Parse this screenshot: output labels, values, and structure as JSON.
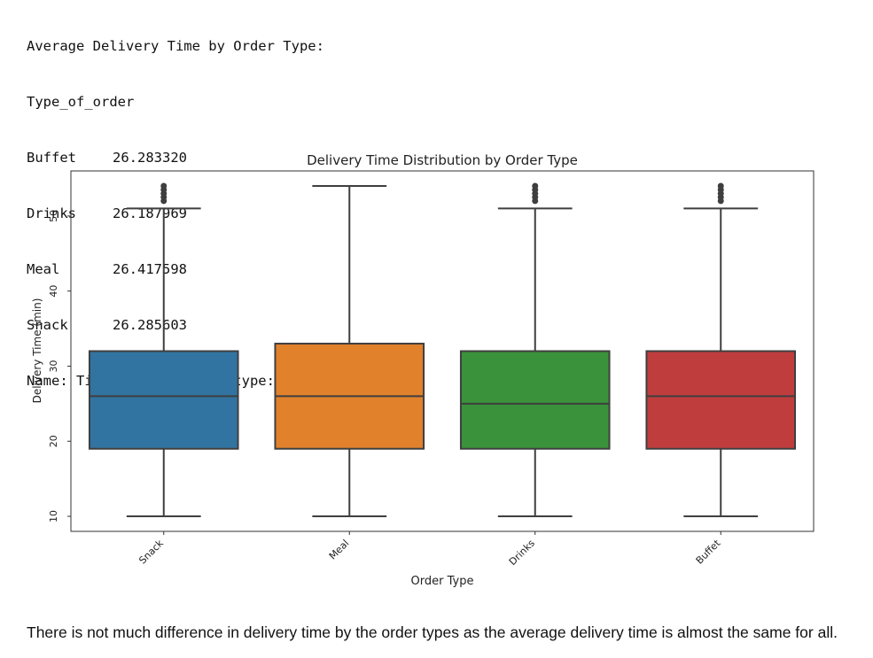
{
  "output": {
    "heading": "Average Delivery Time by Order Type:",
    "index_name": "Type_of_order",
    "rows": [
      {
        "label": "Buffet",
        "value": "26.283320"
      },
      {
        "label": "Drinks",
        "value": "26.187969"
      },
      {
        "label": "Meal",
        "value": "26.417598"
      },
      {
        "label": "Snack",
        "value": "26.285603"
      }
    ],
    "footer": "Name: Time_taken (min), dtype: float64"
  },
  "chart_data": {
    "type": "box",
    "title": "Delivery Time Distribution by Order Type",
    "xlabel": "Order Type",
    "ylabel": "Delivery Time (min)",
    "ylim": [
      8,
      56
    ],
    "yticks": [
      10,
      20,
      30,
      40,
      50
    ],
    "grid": false,
    "categories": [
      "Snack",
      "Meal",
      "Drinks",
      "Buffet"
    ],
    "colors": [
      "#3274a1",
      "#e1812c",
      "#3a923a",
      "#c03d3e"
    ],
    "boxes": [
      {
        "category": "Snack",
        "whisker_low": 10,
        "q1": 19,
        "median": 26,
        "q3": 32,
        "whisker_high": 51,
        "outliers": [
          52,
          52.5,
          53,
          53.5,
          54
        ]
      },
      {
        "category": "Meal",
        "whisker_low": 10,
        "q1": 19,
        "median": 26,
        "q3": 33,
        "whisker_high": 54,
        "outliers": []
      },
      {
        "category": "Drinks",
        "whisker_low": 10,
        "q1": 19,
        "median": 25,
        "q3": 32,
        "whisker_high": 51,
        "outliers": [
          52,
          52.5,
          53,
          53.5,
          54
        ]
      },
      {
        "category": "Buffet",
        "whisker_low": 10,
        "q1": 19,
        "median": 26,
        "q3": 32,
        "whisker_high": 51,
        "outliers": [
          52,
          52.5,
          53,
          53.5,
          54
        ]
      }
    ]
  },
  "note": "There is not much difference in delivery time by the order types as the average delivery time is almost the same for all."
}
